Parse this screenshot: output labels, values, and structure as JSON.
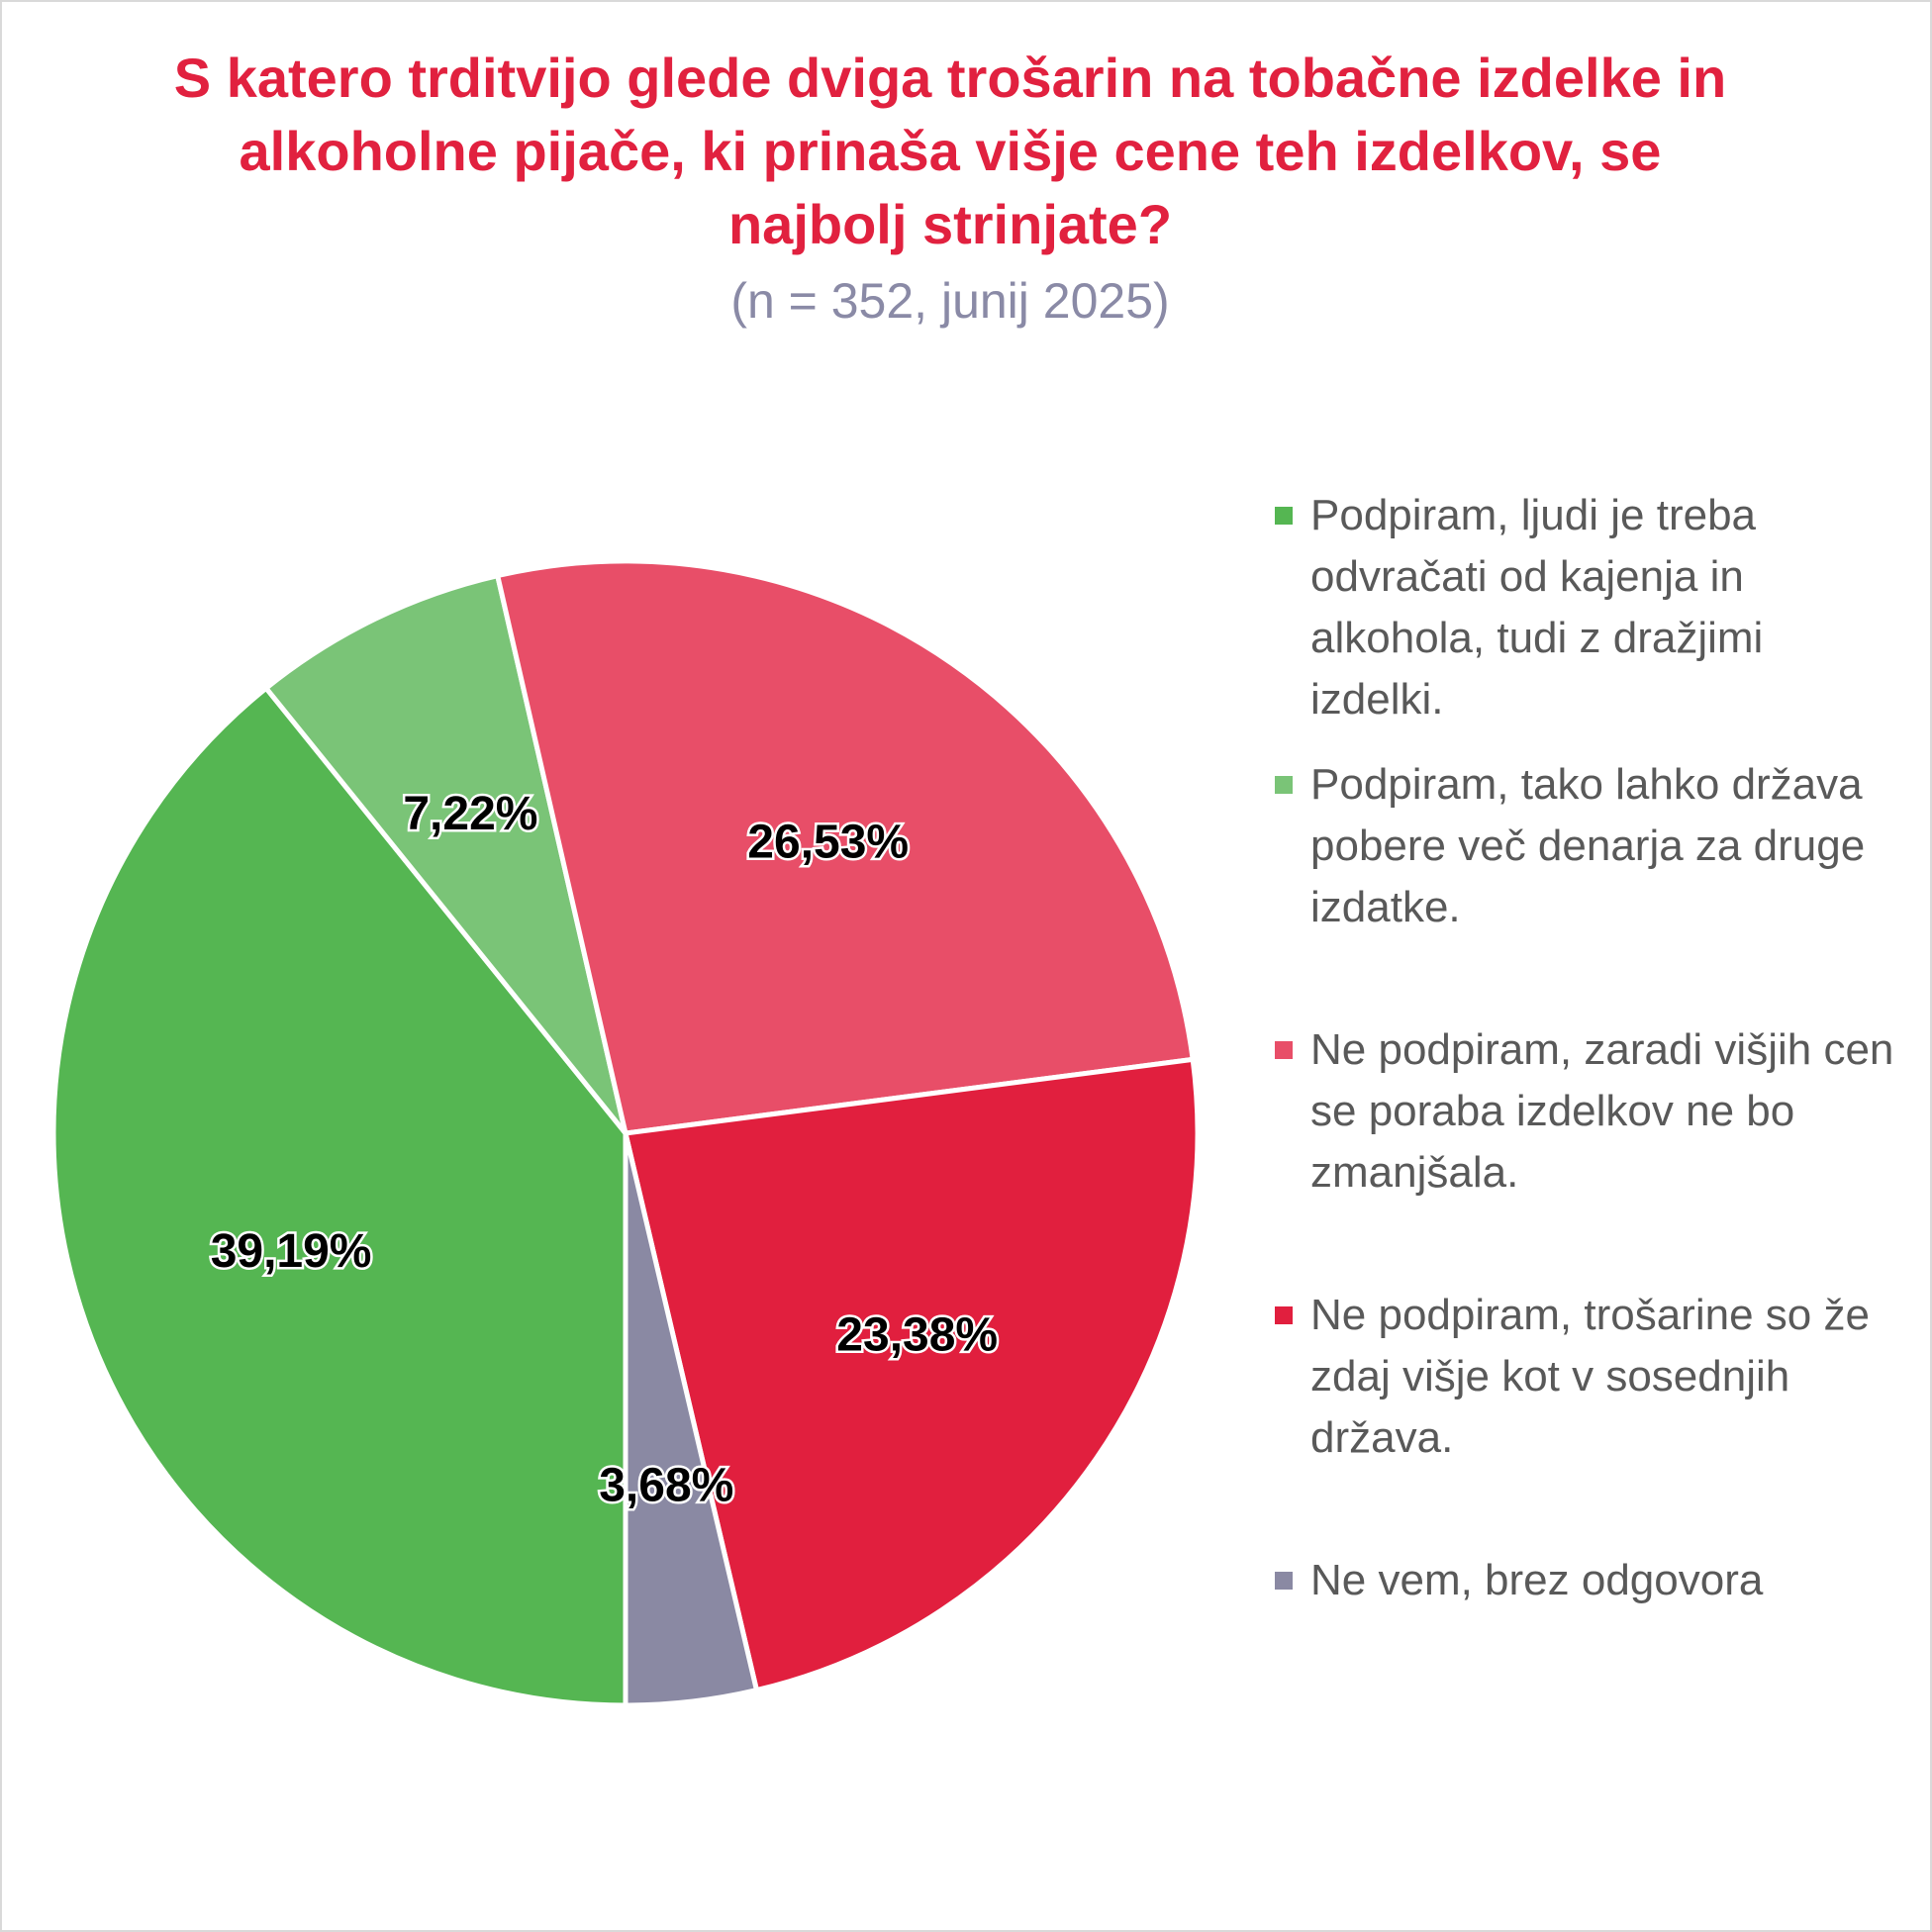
{
  "chart_data": {
    "type": "pie",
    "title": "S katero trditvijo glede dviga trošarin na tobačne izdelke in alkoholne pijače, ki prinaša višje cene teh izdelkov, se najbolj strinjate?",
    "subtitle": "(n = 352, junij 2025)",
    "legend_position": "right",
    "slices": [
      {
        "name": "Podpiram, ljudi je treba odvračati od kajenja in alkohola, tudi z dražjimi izdelki.",
        "value": 39.19,
        "label": "39,19%",
        "color": "#55b652"
      },
      {
        "name": "Podpiram, tako lahko država pobere več denarja za druge izdatke.",
        "value": 7.22,
        "label": "7,22%",
        "color": "#7ac477"
      },
      {
        "name": "Ne podpiram, zaradi višjih cen se poraba izdelkov ne bo zmanjšala.",
        "value": 26.53,
        "label": "26,53%",
        "color": "#e84e68"
      },
      {
        "name": "Ne podpiram, trošarine so že zdaj višje kot v sosednjih država.",
        "value": 23.38,
        "label": "23,38%",
        "color": "#e11f3e"
      },
      {
        "name": "Ne vem, brez odgovora",
        "value": 3.68,
        "label": "3,68%",
        "color": "#8a89a3"
      }
    ]
  }
}
